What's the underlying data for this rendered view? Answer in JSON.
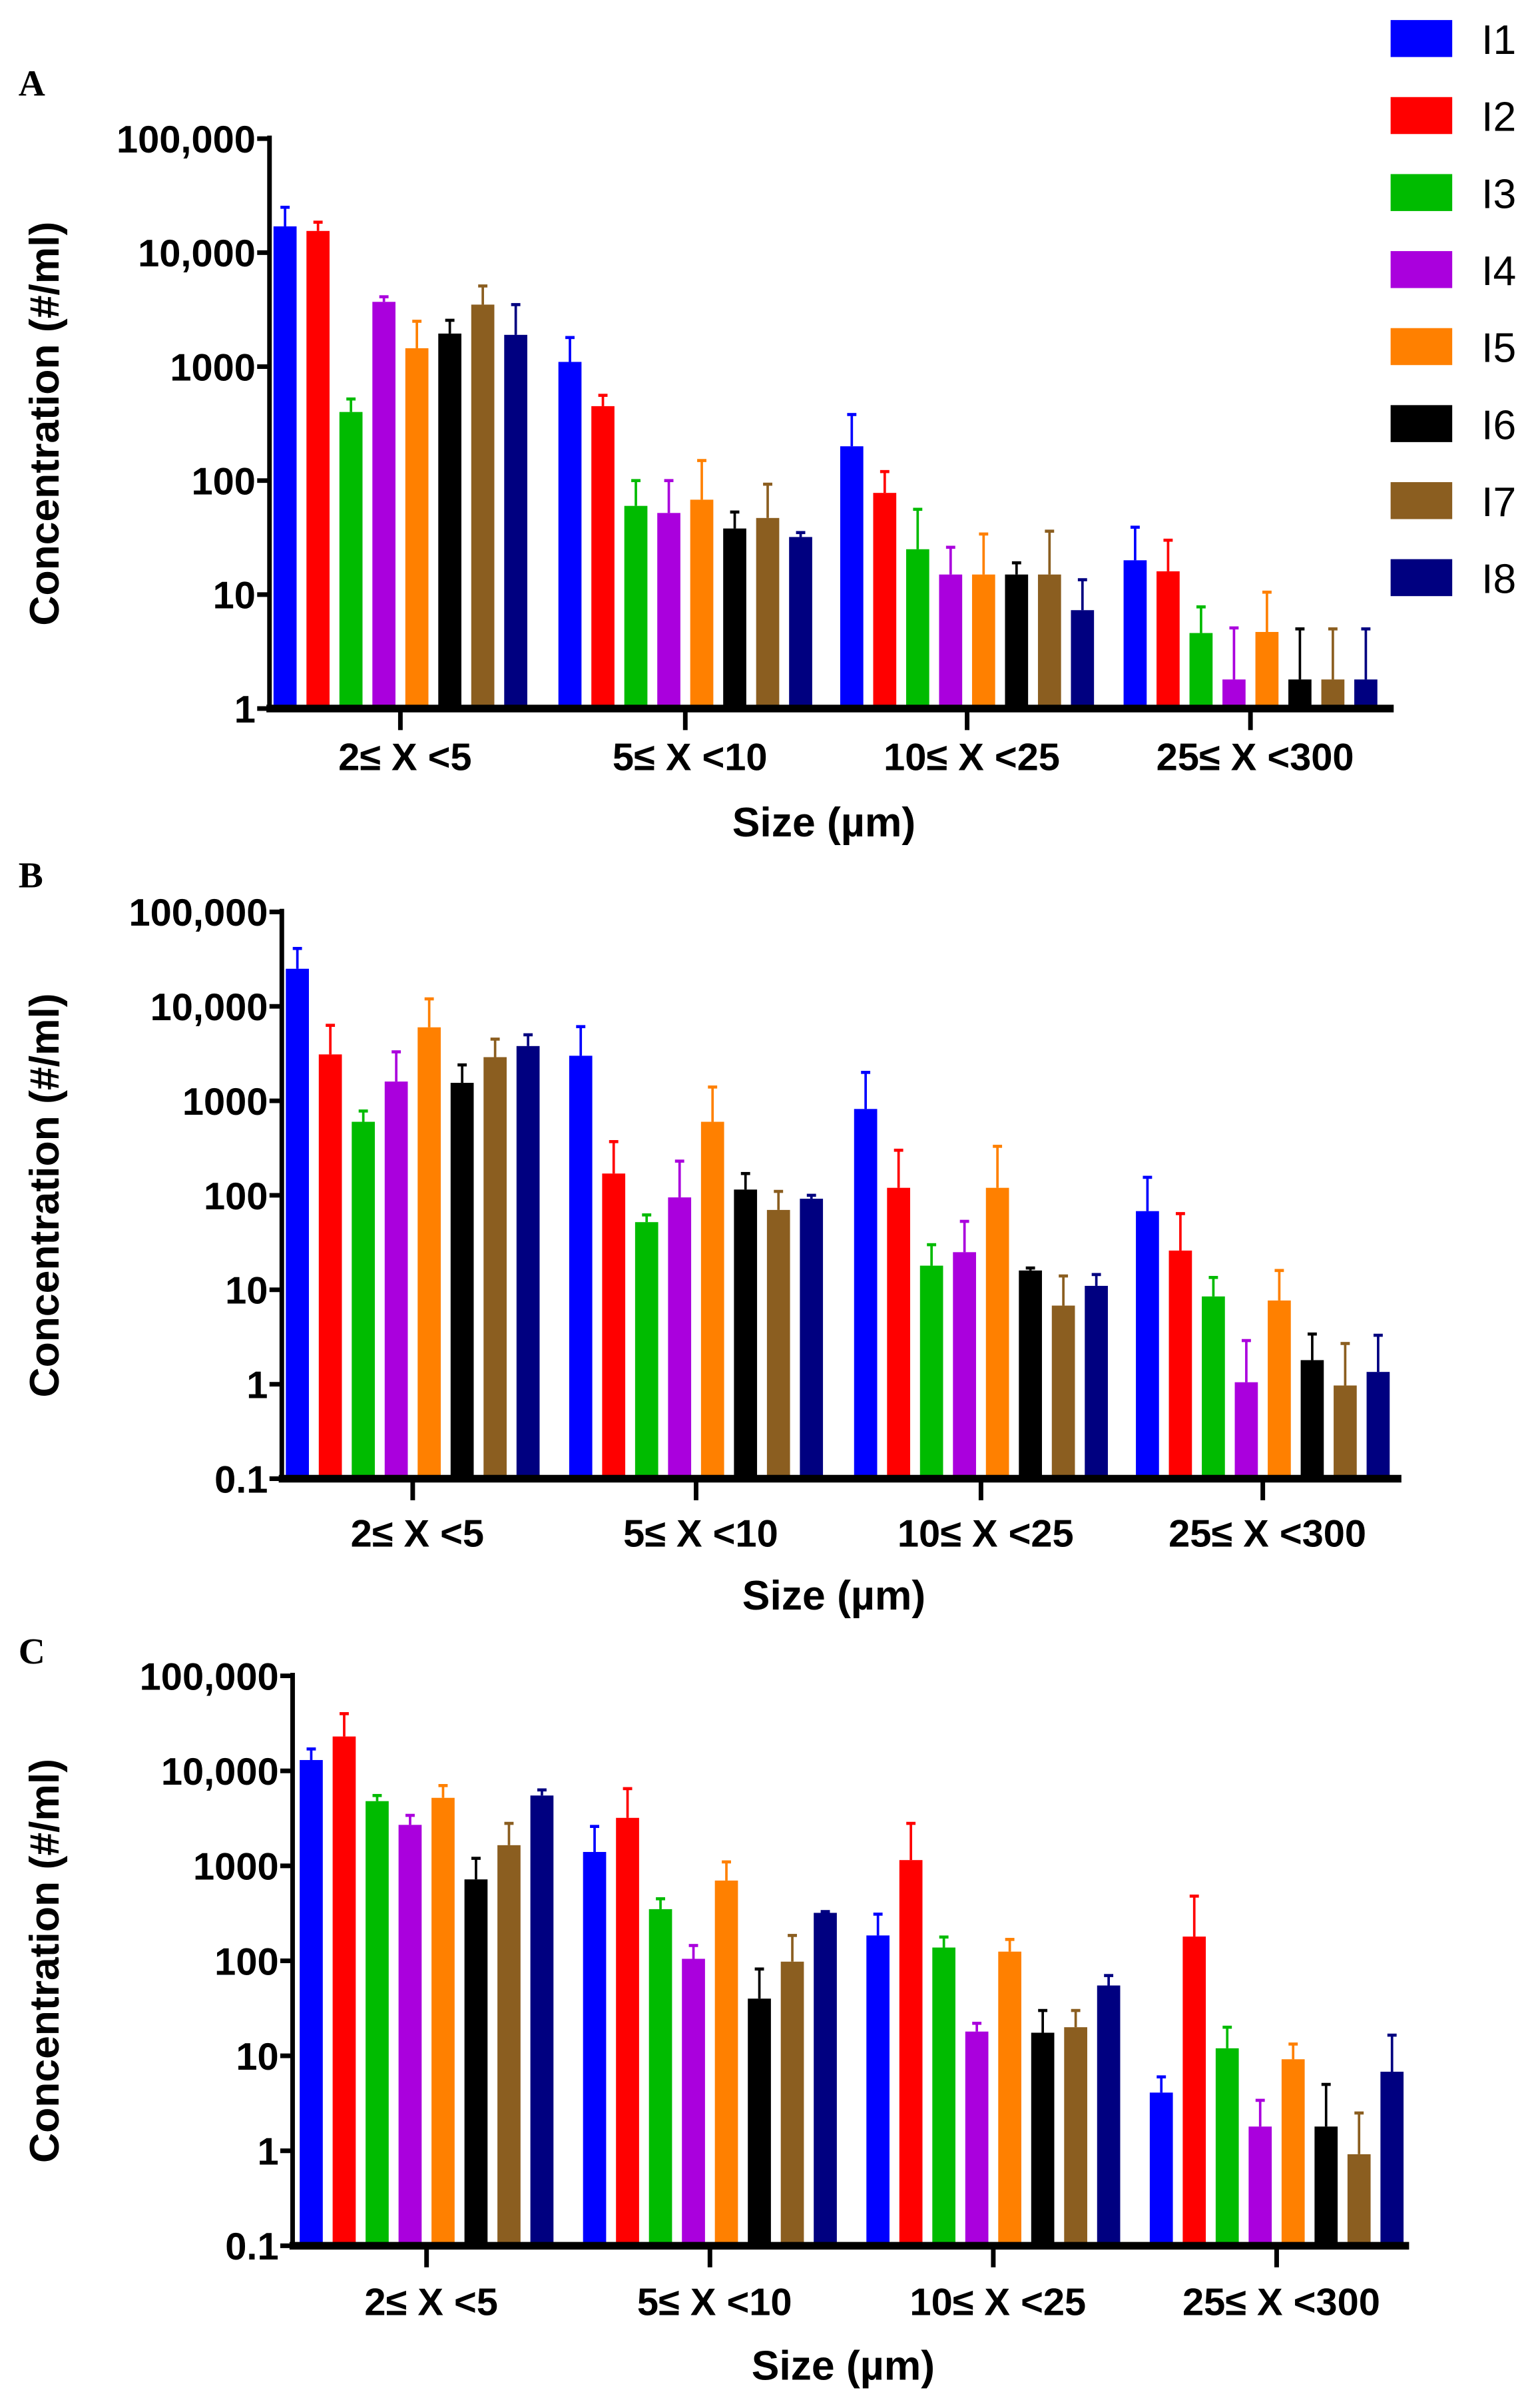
{
  "legend": [
    "I1",
    "I2",
    "I3",
    "I4",
    "I5",
    "I6",
    "I7",
    "I8"
  ],
  "colors": [
    "#0000ff",
    "#ff0000",
    "#00bb00",
    "#aa00dd",
    "#ff8000",
    "#000000",
    "#8b5e20",
    "#000080"
  ],
  "chart_data": [
    {
      "panel": "A",
      "type": "bar",
      "yscale": "log",
      "ylim": [
        1,
        100000
      ],
      "yticks": [
        "1",
        "10",
        "100",
        "1000",
        "10,000",
        "100,000"
      ],
      "xlabel": "Size (µm)",
      "ylabel": "Concentration (#/ml)",
      "categories": [
        "2≤ X <5",
        "5≤ X <10",
        "10≤ X <25",
        "25≤ X <300"
      ],
      "series": [
        {
          "name": "I1",
          "values": [
            17000,
            1100,
            200,
            20
          ],
          "err_top": [
            25000,
            1800,
            380,
            39
          ]
        },
        {
          "name": "I2",
          "values": [
            15500,
            450,
            78,
            16
          ],
          "err_top": [
            18500,
            560,
            120,
            30
          ]
        },
        {
          "name": "I3",
          "values": [
            400,
            60,
            25,
            4.6
          ],
          "err_top": [
            520,
            100,
            56,
            7.8
          ]
        },
        {
          "name": "I4",
          "values": [
            3700,
            52,
            15,
            1.8
          ],
          "err_top": [
            4100,
            100,
            26,
            5.1
          ]
        },
        {
          "name": "I5",
          "values": [
            1450,
            68,
            15,
            4.7
          ],
          "err_top": [
            2500,
            150,
            34,
            10.5
          ]
        },
        {
          "name": "I6",
          "values": [
            1950,
            38,
            15,
            1.8
          ],
          "err_top": [
            2550,
            53,
            19,
            5
          ]
        },
        {
          "name": "I7",
          "values": [
            3500,
            47,
            15,
            1.8
          ],
          "err_top": [
            5100,
            93,
            36,
            5
          ]
        },
        {
          "name": "I8",
          "values": [
            1900,
            32,
            7.3,
            1.8
          ],
          "err_top": [
            3500,
            35,
            13.5,
            5
          ]
        }
      ]
    },
    {
      "panel": "B",
      "type": "bar",
      "yscale": "log",
      "ylim": [
        0.1,
        100000
      ],
      "yticks": [
        "0.1",
        "1",
        "10",
        "100",
        "1000",
        "10,000",
        "100,000"
      ],
      "xlabel": "Size (µm)",
      "ylabel": "Concentration (#/ml)",
      "categories": [
        "2≤ X <5",
        "5≤ X <10",
        "10≤ X <25",
        "25≤ X <300"
      ],
      "series": [
        {
          "name": "I1",
          "values": [
            25000,
            3000,
            820,
            68
          ],
          "err_top": [
            41000,
            6100,
            2000,
            155
          ]
        },
        {
          "name": "I2",
          "values": [
            3100,
            170,
            120,
            26
          ],
          "err_top": [
            6300,
            370,
            300,
            64
          ]
        },
        {
          "name": "I3",
          "values": [
            600,
            52,
            18,
            8.5
          ],
          "err_top": [
            780,
            62,
            30,
            13.5
          ]
        },
        {
          "name": "I4",
          "values": [
            1600,
            95,
            25,
            1.05
          ],
          "err_top": [
            3300,
            230,
            53,
            2.9
          ]
        },
        {
          "name": "I5",
          "values": [
            6000,
            600,
            120,
            7.7
          ],
          "err_top": [
            12000,
            1400,
            330,
            16
          ]
        },
        {
          "name": "I6",
          "values": [
            1550,
            115,
            16,
            1.8
          ],
          "err_top": [
            2400,
            170,
            17,
            3.4
          ]
        },
        {
          "name": "I7",
          "values": [
            2900,
            70,
            6.8,
            0.97
          ],
          "err_top": [
            4500,
            110,
            14,
            2.7
          ]
        },
        {
          "name": "I8",
          "values": [
            3800,
            92,
            11,
            1.35
          ],
          "err_top": [
            5000,
            100,
            14.5,
            3.3
          ]
        }
      ]
    },
    {
      "panel": "C",
      "type": "bar",
      "yscale": "log",
      "ylim": [
        0.1,
        100000
      ],
      "yticks": [
        "0.1",
        "1",
        "10",
        "100",
        "1000",
        "10,000",
        "100,000"
      ],
      "xlabel": "Size (µm)",
      "ylabel": "Concentration (#/ml)",
      "categories": [
        "2≤ X <5",
        "5≤ X <10",
        "10≤ X <25",
        "25≤ X <300"
      ],
      "series": [
        {
          "name": "I1",
          "values": [
            13000,
            1400,
            185,
            4.1
          ],
          "err_top": [
            17000,
            2600,
            310,
            6
          ]
        },
        {
          "name": "I2",
          "values": [
            23000,
            3200,
            1150,
            180
          ],
          "err_top": [
            40000,
            6500,
            2800,
            480
          ]
        },
        {
          "name": "I3",
          "values": [
            4800,
            350,
            138,
            12
          ],
          "err_top": [
            5500,
            450,
            178,
            20
          ]
        },
        {
          "name": "I4",
          "values": [
            2700,
            105,
            18,
            1.8
          ],
          "err_top": [
            3400,
            145,
            22,
            3.4
          ]
        },
        {
          "name": "I5",
          "values": [
            5200,
            700,
            125,
            9.2
          ],
          "err_top": [
            7000,
            1100,
            168,
            13.3
          ]
        },
        {
          "name": "I6",
          "values": [
            720,
            40,
            17.5,
            1.8
          ],
          "err_top": [
            1200,
            82,
            30,
            5
          ]
        },
        {
          "name": "I7",
          "values": [
            1650,
            98,
            20,
            0.92
          ],
          "err_top": [
            2800,
            185,
            30,
            2.5
          ]
        },
        {
          "name": "I8",
          "values": [
            5500,
            320,
            55,
            6.8
          ],
          "err_top": [
            6300,
            330,
            70,
            16.5
          ]
        }
      ]
    }
  ]
}
